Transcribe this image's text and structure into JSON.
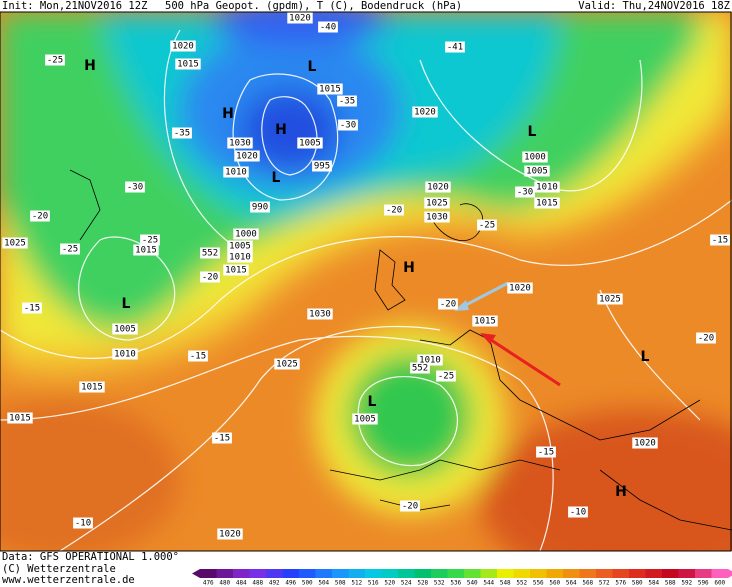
{
  "header": {
    "init": "Init: Mon,21NOV2016 12Z",
    "product": "500 hPa Geopot. (gpdm), T (C), Bodendruck (hPa)",
    "valid": "Valid: Thu,24NOV2016 18Z"
  },
  "footer": {
    "data": "Data: GFS OPERATIONAL 1.000°",
    "copyright": "(C) Wetterzentrale",
    "url": "www.wetterzentrale.de"
  },
  "scale": {
    "labels": [
      476,
      480,
      484,
      488,
      492,
      496,
      500,
      504,
      508,
      512,
      516,
      520,
      524,
      528,
      532,
      536,
      540,
      544,
      548,
      552,
      556,
      560,
      564,
      568,
      572,
      576,
      580,
      584,
      588,
      592,
      596,
      600
    ]
  },
  "isobar_labels": [
    "1020",
    "1015",
    "1020",
    "1015",
    "1030",
    "1005",
    "1020",
    "1010",
    "995",
    "990",
    "1000",
    "1005",
    "1010",
    "1015",
    "1015",
    "1025",
    "1005",
    "1010",
    "1015",
    "1015",
    "1030",
    "1025",
    "1010",
    "1005",
    "1020",
    "1020",
    "1020",
    "1025",
    "1030",
    "1000",
    "1005",
    "1010",
    "1015",
    "1020",
    "1015",
    "1025",
    "1020"
  ],
  "height_labels": [
    "552",
    "552"
  ],
  "temperature_labels": [
    "-40",
    "-41",
    "-25",
    "-35",
    "-30",
    "-20",
    "-25",
    "-25",
    "-20",
    "-35",
    "-30",
    "-20",
    "-25",
    "-30",
    "-20",
    "-15",
    "-15",
    "-15",
    "-25",
    "-15",
    "-10",
    "-10",
    "-20",
    "-20",
    "-15"
  ],
  "pressure_centers": [
    "H",
    "L",
    "H",
    "H",
    "L",
    "L",
    "H",
    "L",
    "L",
    "L",
    "H"
  ]
}
